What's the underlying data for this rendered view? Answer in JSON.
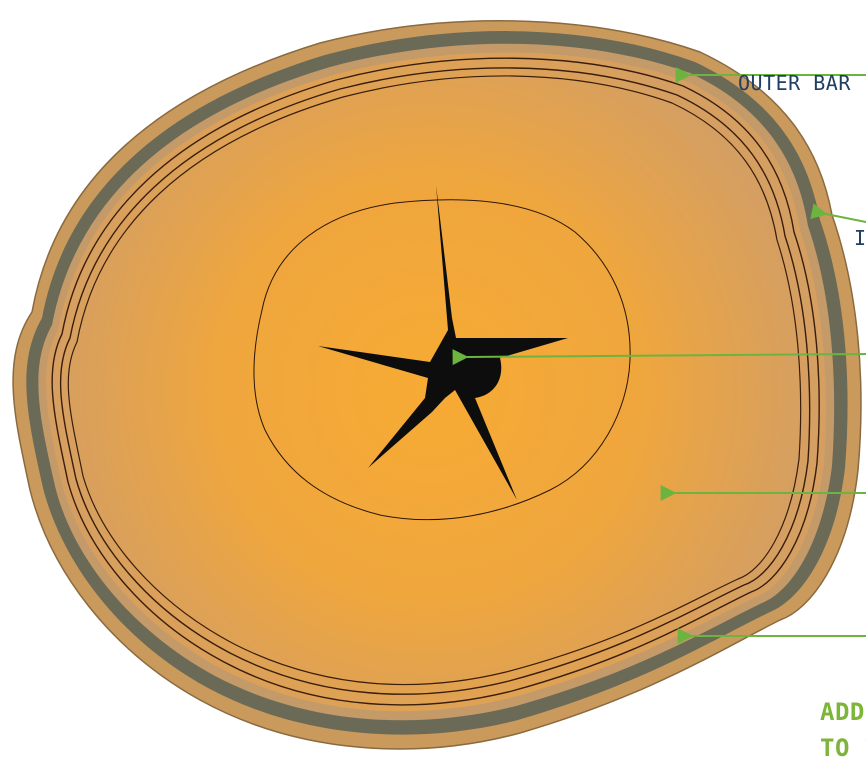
{
  "labels": {
    "outer_bark": "OUTER BAR",
    "inner_bark": "I",
    "note_line1": "ADD",
    "note_line2": "TO T"
  },
  "colors": {
    "bark_outer": "#6b6a57",
    "bark_edge": "#c99a5c",
    "wood_center": "#f7ab34",
    "wood_edge": "#d6a060",
    "pith": "#0d0d0d",
    "ring_line": "#3a1e0c",
    "arrow": "#6db33f",
    "label_dark": "#1f3f66",
    "label_green": "#7db53a"
  }
}
